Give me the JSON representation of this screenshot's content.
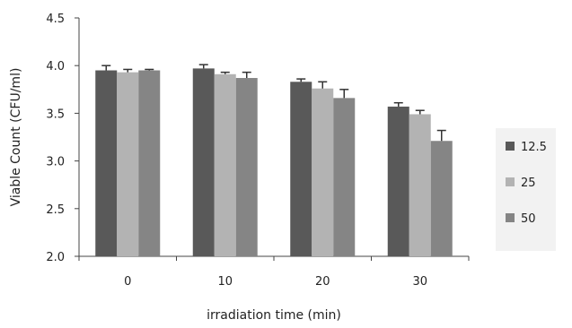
{
  "chart_data": {
    "type": "bar",
    "xlabel": "irradiation time (min)",
    "ylabel": "Viable Count (CFU/ml)",
    "ylim": [
      2.0,
      4.5
    ],
    "yticks": [
      "2.0",
      "2.5",
      "3.0",
      "3.5",
      "4.0",
      "4.5"
    ],
    "grid": false,
    "legend_position": "right",
    "categories": [
      "0",
      "10",
      "20",
      "30"
    ],
    "series": [
      {
        "name": "12.5",
        "color": "#595959",
        "values": [
          3.95,
          3.97,
          3.83,
          3.57
        ],
        "errors": [
          0.05,
          0.04,
          0.03,
          0.04
        ]
      },
      {
        "name": "25",
        "color": "#b3b3b3",
        "values": [
          3.93,
          3.91,
          3.76,
          3.49
        ],
        "errors": [
          0.03,
          0.02,
          0.07,
          0.04
        ]
      },
      {
        "name": "50",
        "color": "#858585",
        "values": [
          3.95,
          3.87,
          3.66,
          3.21
        ],
        "errors": [
          0.01,
          0.06,
          0.09,
          0.11
        ]
      }
    ]
  }
}
